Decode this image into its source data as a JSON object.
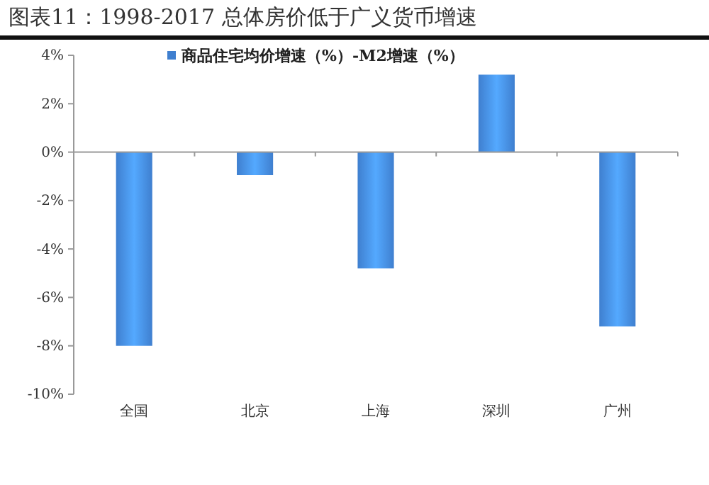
{
  "chart_data": {
    "type": "bar",
    "title": "图表11：1998-2017 总体房价低于广义货币增速",
    "categories": [
      "全国",
      "北京",
      "上海",
      "深圳",
      "广州"
    ],
    "series": [
      {
        "name": "商品住宅均价增速（%）-M2增速（%）",
        "color": "#3f7fcf",
        "values": [
          -8.0,
          -0.95,
          -4.8,
          3.2,
          -7.2
        ]
      }
    ],
    "ylim": [
      -10,
      4
    ],
    "yticks": [
      {
        "value": -10,
        "label": "-10%"
      },
      {
        "value": -8,
        "label": "-8%"
      },
      {
        "value": -6,
        "label": "-6%"
      },
      {
        "value": -4,
        "label": "-4%"
      },
      {
        "value": -2,
        "label": "-2%"
      },
      {
        "value": 0,
        "label": "0%"
      },
      {
        "value": 2,
        "label": "2%"
      },
      {
        "value": 4,
        "label": "4%"
      }
    ],
    "legend": "top"
  }
}
